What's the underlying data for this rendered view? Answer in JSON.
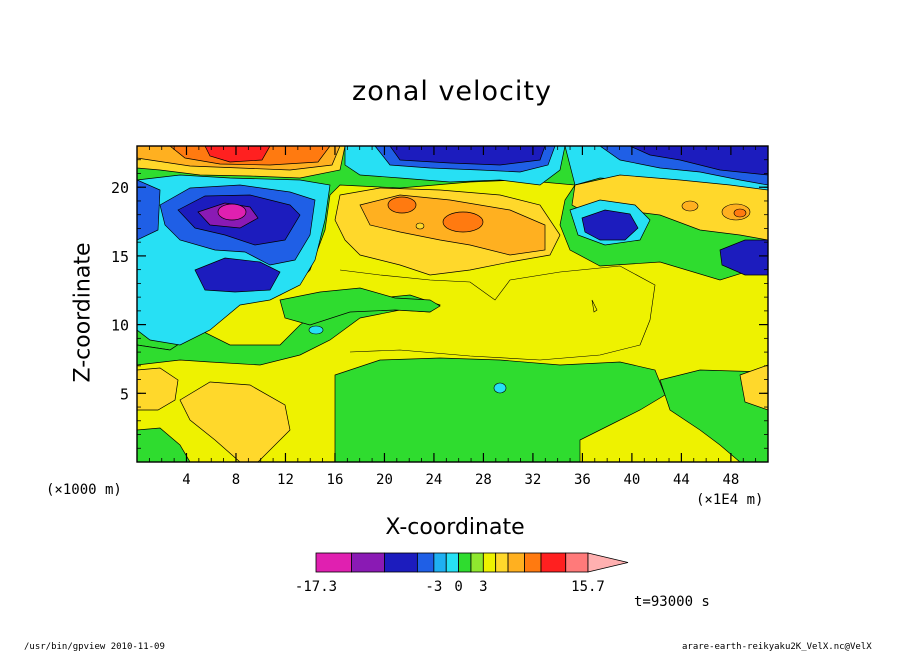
{
  "chart_data": {
    "type": "heatmap",
    "title": "zonal velocity",
    "xlabel": "X-coordinate",
    "ylabel": "Z-coordinate",
    "x_unit_note": "(×1000 m)",
    "x_scale_note": "(×1E4 m)",
    "xlim": [
      0,
      51
    ],
    "ylim": [
      0,
      23
    ],
    "x_ticks": [
      4,
      8,
      12,
      16,
      20,
      24,
      28,
      32,
      36,
      40,
      44,
      48
    ],
    "y_ticks": [
      5,
      10,
      15,
      20
    ],
    "time_label": "t=93000 s",
    "colorbar": {
      "colors": [
        "#e020b0",
        "#8a1ab4",
        "#1c1cbe",
        "#1f5fe6",
        "#1fb0f2",
        "#27e0f4",
        "#2fdc2f",
        "#8fe82f",
        "#eef200",
        "#ffd82b",
        "#ffb020",
        "#ff7a10",
        "#ff2020",
        "#ff7a7a",
        "#ffb0b0"
      ],
      "labels": [
        "-17.3",
        "-3",
        "0",
        "3",
        "15.7"
      ]
    },
    "levels": [
      -17.3,
      -13,
      -9,
      -5,
      -3,
      -1.5,
      0,
      1.5,
      3,
      4.5,
      6,
      8,
      10,
      13,
      15.7
    ]
  },
  "footer": {
    "left": "/usr/bin/gpview  2010-11-09",
    "right": "arare-earth-reikyaku2K_VelX.nc@VelX"
  }
}
